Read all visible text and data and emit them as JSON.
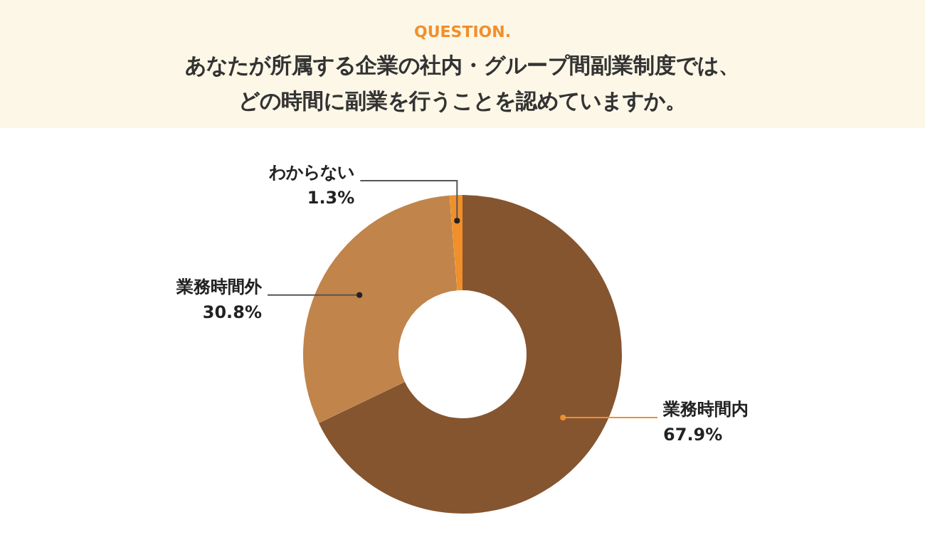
{
  "chart_data": {
    "type": "donut",
    "subtitle": "QUESTION.",
    "title": "あなたが所属する企業の社内・グループ間副業制度では、どの時間に副業を行うことを認めていますか。",
    "categories": [
      "業務時間内",
      "業務時間外",
      "わからない"
    ],
    "values": [
      67.9,
      30.8,
      1.3
    ],
    "colors": [
      "#855530",
      "#c1844b",
      "#f18f2b"
    ],
    "value_labels": [
      "67.9%",
      "30.8%",
      "1.3%"
    ],
    "legend": false
  }
}
